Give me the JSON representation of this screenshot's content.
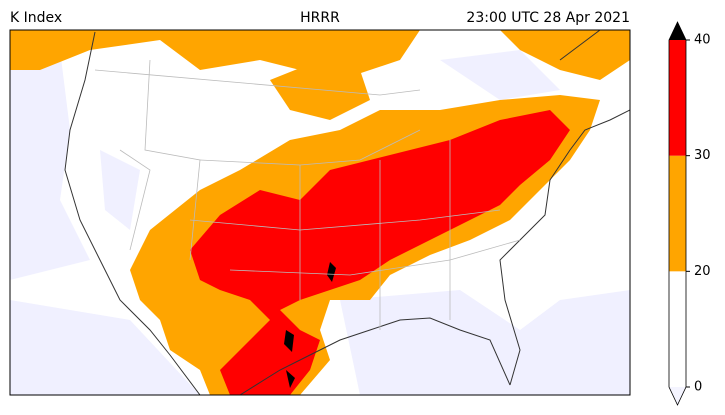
{
  "header": {
    "left": "K Index",
    "center": "HRRR",
    "right": "23:00 UTC 28 Apr 2021"
  },
  "colorbar": {
    "levels": [
      0,
      20,
      30,
      40
    ],
    "colors": [
      "#ffffff",
      "#ffa500",
      "#ff0000"
    ],
    "under_color": "#f4f4ff",
    "over_color": "#000000"
  }
}
